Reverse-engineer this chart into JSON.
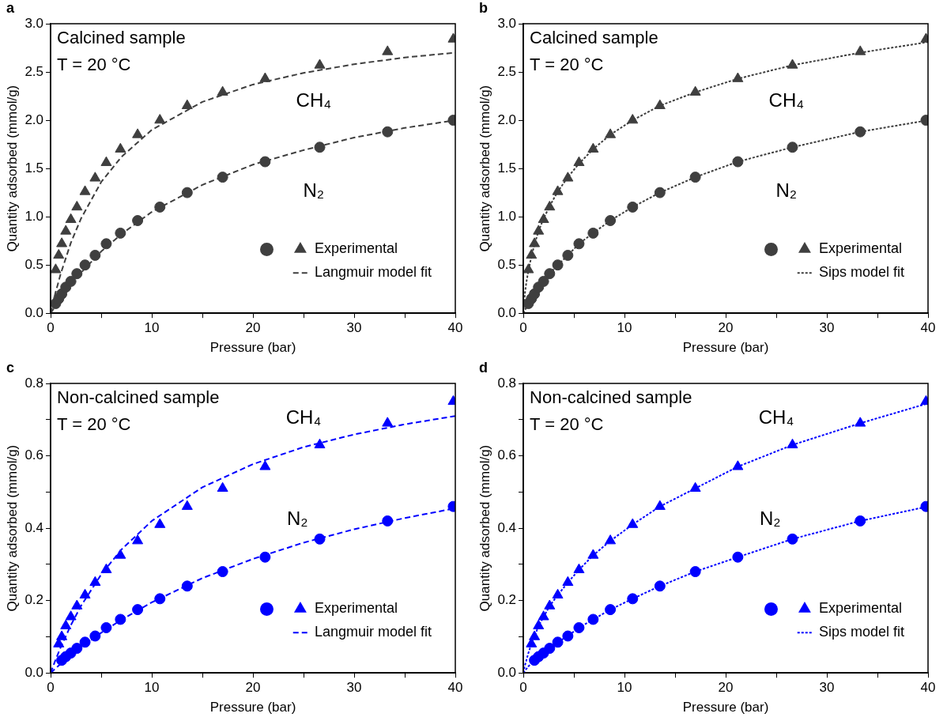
{
  "chart_data": [
    {
      "type": "scatter",
      "title": "a",
      "xlabel": "Pressure (bar)",
      "ylabel": "Quantity adsorbed (mmol/g)",
      "xlim": [
        0,
        40
      ],
      "ylim": [
        0,
        3
      ],
      "xticks": [
        0,
        {
          "value": 5,
          "label": null
        },
        10,
        {
          "value": 15,
          "label": null
        },
        20,
        {
          "value": 25,
          "label": null
        },
        30,
        {
          "value": 35,
          "label": null
        },
        40
      ],
      "yticks": [
        {
          "value": 0,
          "label": "0.0"
        },
        {
          "value": 0.5,
          "label": "0.5"
        },
        {
          "value": 1,
          "label": "1.0"
        },
        {
          "value": 1.5,
          "label": "1.5"
        },
        {
          "value": 2,
          "label": "2.0"
        },
        {
          "value": 2.5,
          "label": "2.5"
        },
        {
          "value": 3,
          "label": "3.0"
        }
      ],
      "grid": false,
      "legend": "bottom right",
      "annotations": [
        "Calcined sample",
        "T = 20 °C",
        "CH₄",
        "N₂"
      ],
      "series": [
        {
          "marker": "circle",
          "color": "#3f3f3f",
          "x": [
            0.5,
            0.8,
            1.1,
            1.5,
            2.0,
            2.6,
            3.4,
            4.4,
            5.5,
            6.9,
            8.6,
            10.8,
            13.5,
            17,
            21.2,
            26.6,
            33.3,
            39.8
          ],
          "values": [
            0.1,
            0.15,
            0.2,
            0.27,
            0.33,
            0.41,
            0.5,
            0.6,
            0.72,
            0.83,
            0.96,
            1.1,
            1.25,
            1.41,
            1.57,
            1.72,
            1.88,
            2.0
          ]
        },
        {
          "name": "Experimental",
          "marker": "triangle",
          "color": "#3f3f3f",
          "x": [
            0.5,
            0.8,
            1.1,
            1.5,
            2.0,
            2.6,
            3.4,
            4.4,
            5.5,
            6.9,
            8.6,
            10.8,
            13.5,
            17,
            21.2,
            26.6,
            33.3,
            39.8
          ],
          "values": [
            0.45,
            0.6,
            0.72,
            0.85,
            0.97,
            1.1,
            1.26,
            1.4,
            1.56,
            1.7,
            1.85,
            2.0,
            2.15,
            2.29,
            2.43,
            2.57,
            2.71,
            2.84
          ]
        },
        {
          "name": "Langmuir model fit",
          "type": "line",
          "marker": "none",
          "line_style": "dashed",
          "color": "#3f3f3f",
          "x": [
            0,
            0.5,
            1,
            2,
            3,
            5,
            7,
            10,
            15,
            20,
            25,
            30,
            35,
            40
          ],
          "values": [
            0,
            0.22,
            0.41,
            0.73,
            0.98,
            1.36,
            1.62,
            1.9,
            2.19,
            2.37,
            2.49,
            2.58,
            2.65,
            2.7
          ]
        },
        {
          "type": "line",
          "marker": "none",
          "line_style": "dashed",
          "color": "#3f3f3f",
          "x": [
            0,
            0.5,
            1,
            2,
            3,
            5,
            7,
            10,
            15,
            20,
            25,
            30,
            35,
            40
          ],
          "values": [
            0,
            0.08,
            0.16,
            0.3,
            0.42,
            0.64,
            0.82,
            1.05,
            1.33,
            1.54,
            1.69,
            1.82,
            1.92,
            2.0
          ]
        }
      ]
    },
    {
      "type": "scatter",
      "title": "b",
      "xlabel": "Pressure (bar)",
      "ylabel": "Quantity adsorbed (mmol/g)",
      "xlim": [
        0,
        40
      ],
      "ylim": [
        0,
        3
      ],
      "xticks": [
        0,
        {
          "value": 5,
          "label": null
        },
        10,
        {
          "value": 15,
          "label": null
        },
        20,
        {
          "value": 25,
          "label": null
        },
        30,
        {
          "value": 35,
          "label": null
        },
        40
      ],
      "yticks": [
        {
          "value": 0,
          "label": "0.0"
        },
        {
          "value": 0.5,
          "label": "0.5"
        },
        {
          "value": 1,
          "label": "1.0"
        },
        {
          "value": 1.5,
          "label": "1.5"
        },
        {
          "value": 2,
          "label": "2.0"
        },
        {
          "value": 2.5,
          "label": "2.5"
        },
        {
          "value": 3,
          "label": "3.0"
        }
      ],
      "grid": false,
      "legend": "bottom right",
      "annotations": [
        "Calcined sample",
        "T = 20 °C",
        "CH₄",
        "N₂"
      ],
      "series": [
        {
          "marker": "circle",
          "color": "#3f3f3f",
          "x": [
            0.5,
            0.8,
            1.1,
            1.5,
            2.0,
            2.6,
            3.4,
            4.4,
            5.5,
            6.9,
            8.6,
            10.8,
            13.5,
            17,
            21.2,
            26.6,
            33.3,
            39.8
          ],
          "values": [
            0.1,
            0.15,
            0.2,
            0.27,
            0.33,
            0.41,
            0.5,
            0.6,
            0.72,
            0.83,
            0.96,
            1.1,
            1.25,
            1.41,
            1.57,
            1.72,
            1.88,
            2.0
          ]
        },
        {
          "name": "Experimental",
          "marker": "triangle",
          "color": "#3f3f3f",
          "x": [
            0.5,
            0.8,
            1.1,
            1.5,
            2.0,
            2.6,
            3.4,
            4.4,
            5.5,
            6.9,
            8.6,
            10.8,
            13.5,
            17,
            21.2,
            26.6,
            33.3,
            39.8
          ],
          "values": [
            0.45,
            0.6,
            0.72,
            0.85,
            0.97,
            1.1,
            1.26,
            1.4,
            1.56,
            1.7,
            1.85,
            2.0,
            2.15,
            2.29,
            2.43,
            2.57,
            2.71,
            2.84
          ]
        },
        {
          "name": "Sips model fit",
          "type": "line",
          "marker": "none",
          "line_style": "dotted",
          "color": "#3f3f3f",
          "x": [
            0,
            0.15,
            0.3,
            0.5,
            0.8,
            1.1,
            1.5,
            2.0,
            2.6,
            3.4,
            4.4,
            5.5,
            6.9,
            8.6,
            10.8,
            13.5,
            17,
            21.2,
            26.6,
            33.3,
            40
          ],
          "values": [
            0,
            0.2,
            0.32,
            0.44,
            0.59,
            0.71,
            0.85,
            0.98,
            1.11,
            1.26,
            1.41,
            1.55,
            1.7,
            1.85,
            2.0,
            2.15,
            2.29,
            2.43,
            2.57,
            2.7,
            2.81
          ]
        },
        {
          "type": "line",
          "marker": "none",
          "line_style": "dotted",
          "color": "#3f3f3f",
          "x": [
            0,
            0.15,
            0.3,
            0.5,
            0.8,
            1.1,
            1.5,
            2.0,
            2.6,
            3.4,
            4.4,
            5.5,
            6.9,
            8.6,
            10.8,
            13.5,
            17,
            21.2,
            26.6,
            33.3,
            40
          ],
          "values": [
            0,
            0.03,
            0.06,
            0.1,
            0.15,
            0.2,
            0.27,
            0.33,
            0.41,
            0.5,
            0.6,
            0.72,
            0.83,
            0.96,
            1.1,
            1.25,
            1.41,
            1.57,
            1.72,
            1.88,
            2.0
          ]
        }
      ]
    },
    {
      "type": "scatter",
      "title": "c",
      "xlabel": "Pressure (bar)",
      "ylabel": "Quantity adsorbed (mmol/g)",
      "xlim": [
        0,
        40
      ],
      "ylim": [
        0,
        0.8
      ],
      "xticks": [
        0,
        {
          "value": 5,
          "label": null
        },
        10,
        {
          "value": 15,
          "label": null
        },
        20,
        {
          "value": 25,
          "label": null
        },
        30,
        {
          "value": 35,
          "label": null
        },
        40
      ],
      "yticks": [
        {
          "value": 0,
          "label": "0.0"
        },
        {
          "value": 0.1,
          "label": null
        },
        {
          "value": 0.2,
          "label": "0.2"
        },
        {
          "value": 0.3,
          "label": null
        },
        {
          "value": 0.4,
          "label": "0.4"
        },
        {
          "value": 0.5,
          "label": null
        },
        {
          "value": 0.6,
          "label": "0.6"
        },
        {
          "value": 0.7,
          "label": null
        },
        {
          "value": 0.8,
          "label": "0.8"
        }
      ],
      "grid": false,
      "legend": "bottom right",
      "annotations": [
        "Non-calcined sample",
        "T = 20 °C",
        "CH₄",
        "N₂"
      ],
      "series": [
        {
          "marker": "circle",
          "color": "#0000ff",
          "x": [
            1.1,
            1.5,
            2.0,
            2.6,
            3.4,
            4.4,
            5.5,
            6.9,
            8.6,
            10.8,
            13.5,
            17,
            21.2,
            26.6,
            33.3,
            39.8
          ],
          "values": [
            0.035,
            0.045,
            0.055,
            0.068,
            0.085,
            0.102,
            0.125,
            0.148,
            0.175,
            0.205,
            0.24,
            0.28,
            0.32,
            0.37,
            0.42,
            0.46
          ]
        },
        {
          "name": "Experimental",
          "marker": "triangle",
          "color": "#0000ff",
          "x": [
            0.8,
            1.1,
            1.5,
            2.0,
            2.6,
            3.4,
            4.4,
            5.5,
            6.9,
            8.6,
            10.8,
            13.5,
            17,
            21.2,
            26.6,
            33.3,
            39.8
          ],
          "values": [
            0.08,
            0.1,
            0.13,
            0.155,
            0.185,
            0.215,
            0.25,
            0.285,
            0.325,
            0.365,
            0.41,
            0.46,
            0.51,
            0.57,
            0.63,
            0.69,
            0.75
          ]
        },
        {
          "name": "Langmuir model fit",
          "type": "line",
          "marker": "none",
          "line_style": "dashed",
          "color": "#0000ff",
          "x": [
            0,
            0.5,
            1,
            2,
            3,
            5,
            7,
            10,
            15,
            20,
            25,
            30,
            35,
            40
          ],
          "values": [
            0,
            0.037,
            0.071,
            0.132,
            0.185,
            0.272,
            0.341,
            0.42,
            0.513,
            0.577,
            0.624,
            0.659,
            0.687,
            0.71
          ]
        },
        {
          "type": "line",
          "marker": "none",
          "line_style": "dashed",
          "color": "#0000ff",
          "x": [
            0,
            0.5,
            1,
            2,
            3,
            5,
            7,
            10,
            15,
            20,
            25,
            30,
            35,
            40
          ],
          "values": [
            0,
            0.013,
            0.025,
            0.048,
            0.07,
            0.111,
            0.147,
            0.195,
            0.262,
            0.315,
            0.36,
            0.397,
            0.428,
            0.455
          ]
        }
      ]
    },
    {
      "type": "scatter",
      "title": "d",
      "xlabel": "Pressure (bar)",
      "ylabel": "Quantity adsorbed (mmol/g)",
      "xlim": [
        0,
        40
      ],
      "ylim": [
        0,
        0.8
      ],
      "xticks": [
        0,
        {
          "value": 5,
          "label": null
        },
        10,
        {
          "value": 15,
          "label": null
        },
        20,
        {
          "value": 25,
          "label": null
        },
        30,
        {
          "value": 35,
          "label": null
        },
        40
      ],
      "yticks": [
        {
          "value": 0,
          "label": "0.0"
        },
        {
          "value": 0.1,
          "label": null
        },
        {
          "value": 0.2,
          "label": "0.2"
        },
        {
          "value": 0.3,
          "label": null
        },
        {
          "value": 0.4,
          "label": "0.4"
        },
        {
          "value": 0.5,
          "label": null
        },
        {
          "value": 0.6,
          "label": "0.6"
        },
        {
          "value": 0.7,
          "label": null
        },
        {
          "value": 0.8,
          "label": "0.8"
        }
      ],
      "grid": false,
      "legend": "bottom right",
      "annotations": [
        "Non-calcined sample",
        "T = 20 °C",
        "CH₄",
        "N₂"
      ],
      "series": [
        {
          "marker": "circle",
          "color": "#0000ff",
          "x": [
            1.1,
            1.5,
            2.0,
            2.6,
            3.4,
            4.4,
            5.5,
            6.9,
            8.6,
            10.8,
            13.5,
            17,
            21.2,
            26.6,
            33.3,
            39.8
          ],
          "values": [
            0.035,
            0.045,
            0.055,
            0.068,
            0.085,
            0.102,
            0.125,
            0.148,
            0.175,
            0.205,
            0.24,
            0.28,
            0.32,
            0.37,
            0.42,
            0.46
          ]
        },
        {
          "name": "Experimental",
          "marker": "triangle",
          "color": "#0000ff",
          "x": [
            0.8,
            1.1,
            1.5,
            2.0,
            2.6,
            3.4,
            4.4,
            5.5,
            6.9,
            8.6,
            10.8,
            13.5,
            17,
            21.2,
            26.6,
            33.3,
            39.8
          ],
          "values": [
            0.08,
            0.1,
            0.13,
            0.155,
            0.185,
            0.215,
            0.25,
            0.285,
            0.325,
            0.365,
            0.41,
            0.46,
            0.51,
            0.57,
            0.63,
            0.69,
            0.75
          ]
        },
        {
          "name": "Sips model fit",
          "type": "line",
          "marker": "none",
          "line_style": "dotted",
          "color": "#0000ff",
          "x": [
            0,
            0.15,
            0.3,
            0.5,
            0.8,
            1.1,
            1.5,
            2.0,
            2.6,
            3.4,
            4.4,
            5.5,
            6.9,
            8.6,
            10.8,
            13.5,
            17,
            21.2,
            26.6,
            33.3,
            40
          ],
          "values": [
            0,
            0.02,
            0.035,
            0.055,
            0.08,
            0.1,
            0.13,
            0.155,
            0.185,
            0.215,
            0.25,
            0.285,
            0.325,
            0.365,
            0.41,
            0.46,
            0.51,
            0.57,
            0.63,
            0.69,
            0.745
          ]
        },
        {
          "type": "line",
          "marker": "none",
          "line_style": "dotted",
          "color": "#0000ff",
          "x": [
            0,
            0.15,
            0.3,
            0.5,
            0.8,
            1.1,
            1.5,
            2.0,
            2.6,
            3.4,
            4.4,
            5.5,
            6.9,
            8.6,
            10.8,
            13.5,
            17,
            21.2,
            26.6,
            33.3,
            40
          ],
          "values": [
            0,
            0.006,
            0.011,
            0.018,
            0.027,
            0.035,
            0.045,
            0.055,
            0.068,
            0.085,
            0.102,
            0.125,
            0.148,
            0.175,
            0.205,
            0.24,
            0.28,
            0.32,
            0.37,
            0.42,
            0.46
          ]
        }
      ]
    }
  ]
}
